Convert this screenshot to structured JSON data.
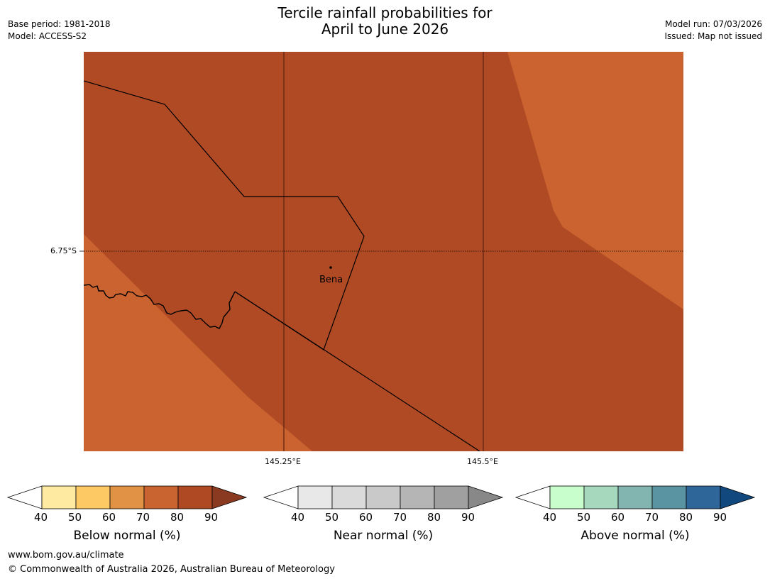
{
  "header": {
    "title_line1": "Tercile rainfall probabilities for",
    "title_line2": "April to June 2026",
    "base_period": "Base period: 1981-2018",
    "model": "Model: ACCESS-S2",
    "model_run": "Model run: 07/03/2026",
    "issued": "Issued: Map not issued"
  },
  "map": {
    "latitude_label": "6.75°S",
    "longitude_labels": [
      "145.25°E",
      "145.5°E"
    ],
    "place_label": "Bena",
    "colors": {
      "dark_region": "#b04a24",
      "light_region": "#cb6330",
      "grid_line": "#5a2210",
      "border_line": "#000000"
    }
  },
  "colorbars": [
    {
      "name": "below",
      "title": "Below normal (%)",
      "ticks": [
        "40",
        "50",
        "60",
        "70",
        "80",
        "90"
      ],
      "low_color": "#ffffff",
      "colors": [
        "#feeaa0",
        "#fdc964",
        "#e19245",
        "#c96330",
        "#ae4924"
      ],
      "high_color": "#8a3a20"
    },
    {
      "name": "near",
      "title": "Near normal (%)",
      "ticks": [
        "40",
        "50",
        "60",
        "70",
        "80",
        "90"
      ],
      "low_color": "#ffffff",
      "colors": [
        "#e8e8e8",
        "#dadada",
        "#c9c9c9",
        "#b5b5b5",
        "#a0a0a0"
      ],
      "high_color": "#888888"
    },
    {
      "name": "above",
      "title": "Above normal (%)",
      "ticks": [
        "40",
        "50",
        "60",
        "70",
        "80",
        "90"
      ],
      "low_color": "#ffffff",
      "colors": [
        "#c8fdcc",
        "#a5d8bd",
        "#82b5b0",
        "#5a94a2",
        "#2f6699"
      ],
      "high_color": "#11497e"
    }
  ],
  "footer": {
    "url": "www.bom.gov.au/climate",
    "copyright": "© Commonwealth of Australia 2026, Australian Bureau of Meteorology"
  }
}
